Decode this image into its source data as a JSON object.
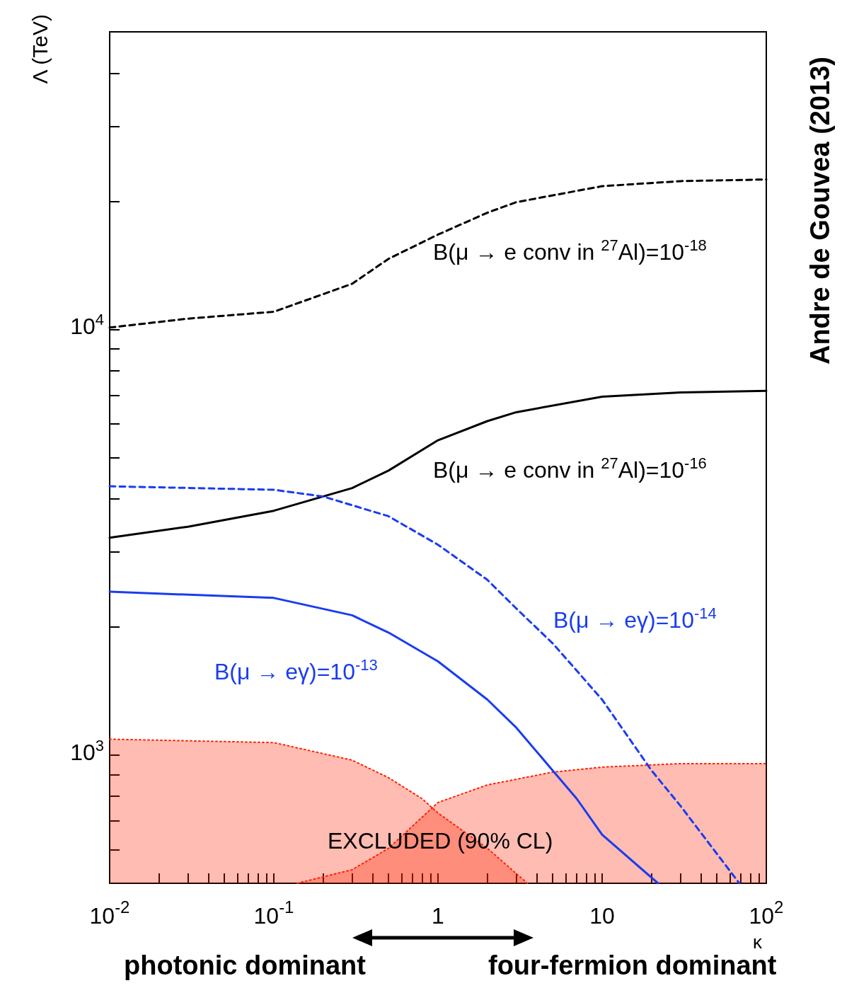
{
  "chart_data": {
    "type": "line",
    "xlabel": "κ",
    "ylabel": "Λ (TeV)",
    "log": "xy",
    "xlim": [
      0.01,
      100
    ],
    "ylim": [
      500,
      50000
    ],
    "xticks": [
      {
        "value": 0.01,
        "label": "10$^{-2}$"
      },
      {
        "value": 0.02,
        "label": null
      },
      {
        "value": 0.03,
        "label": null
      },
      {
        "value": 0.04,
        "label": null
      },
      {
        "value": 0.05,
        "label": null
      },
      {
        "value": 0.06,
        "label": null
      },
      {
        "value": 0.07,
        "label": null
      },
      {
        "value": 0.08,
        "label": null
      },
      {
        "value": 0.09,
        "label": null
      },
      {
        "value": 0.1,
        "label": "10$^{-1}$"
      },
      {
        "value": 0.2,
        "label": null
      },
      {
        "value": 0.3,
        "label": null
      },
      {
        "value": 0.4,
        "label": null
      },
      {
        "value": 0.5,
        "label": null
      },
      {
        "value": 0.6,
        "label": null
      },
      {
        "value": 0.7,
        "label": null
      },
      {
        "value": 0.8,
        "label": null
      },
      {
        "value": 0.9,
        "label": null
      },
      1,
      {
        "value": 2,
        "label": null
      },
      {
        "value": 3,
        "label": null
      },
      {
        "value": 4,
        "label": null
      },
      {
        "value": 5,
        "label": null
      },
      {
        "value": 6,
        "label": null
      },
      {
        "value": 7,
        "label": null
      },
      {
        "value": 8,
        "label": null
      },
      {
        "value": 9,
        "label": null
      },
      10,
      {
        "value": 20,
        "label": null
      },
      {
        "value": 30,
        "label": null
      },
      {
        "value": 40,
        "label": null
      },
      {
        "value": 50,
        "label": null
      },
      {
        "value": 60,
        "label": null
      },
      {
        "value": 70,
        "label": null
      },
      {
        "value": 80,
        "label": null
      },
      {
        "value": 90,
        "label": null
      },
      {
        "value": 100,
        "label": "10$^{2}$"
      }
    ],
    "yticks": [
      {
        "value": 600,
        "label": null
      },
      {
        "value": 700,
        "label": null
      },
      {
        "value": 800,
        "label": null
      },
      {
        "value": 900,
        "label": null
      },
      {
        "value": 1000,
        "label": "10$^{3}$"
      },
      {
        "value": 2000,
        "label": null
      },
      {
        "value": 3000,
        "label": null
      },
      {
        "value": 4000,
        "label": null
      },
      {
        "value": 5000,
        "label": null
      },
      {
        "value": 6000,
        "label": null
      },
      {
        "value": 7000,
        "label": null
      },
      {
        "value": 8000,
        "label": null
      },
      {
        "value": 9000,
        "label": null
      },
      {
        "value": 10000,
        "label": "10$^{4}$"
      },
      {
        "value": 20000,
        "label": null
      },
      {
        "value": 30000,
        "label": null
      },
      {
        "value": 40000,
        "label": null
      },
      {
        "value": 50000,
        "label": null
      }
    ],
    "grid": false,
    "marker": "none",
    "series": [
      {
        "type": "area",
        "color": "#ff2200",
        "line_style": "dotted",
        "x": [
          0.01,
          0.1,
          0.3,
          0.5,
          0.8,
          1,
          2,
          3.5
        ],
        "values": [
          1090,
          1070,
          973,
          885,
          790,
          731,
          604,
          500
        ]
      },
      {
        "type": "area",
        "color": "#ff2200",
        "line_style": "dotted",
        "x": [
          0.139,
          0.3,
          0.5,
          1,
          2,
          5,
          10,
          30,
          100
        ],
        "values": [
          500,
          538,
          604,
          774,
          851,
          912,
          937,
          955,
          955
        ]
      },
      {
        "name": "B(μ → e conv in $^{27}$Al)=10$^{-18}$",
        "color": "#000000",
        "line_style": "dashed",
        "x": [
          0.01,
          0.03,
          0.1,
          0.3,
          0.5,
          1,
          2,
          3,
          10,
          30,
          100
        ],
        "values": [
          10100,
          10600,
          11000,
          12800,
          14650,
          16700,
          18800,
          19900,
          21700,
          22300,
          22500
        ]
      },
      {
        "name": "B(μ → e conv in $^{27}$Al)=10$^{-16}$",
        "color": "#000000",
        "line_style": "solid",
        "x": [
          0.01,
          0.03,
          0.1,
          0.3,
          0.5,
          1,
          2,
          3,
          10,
          30,
          100
        ],
        "values": [
          3240,
          3440,
          3750,
          4240,
          4660,
          5490,
          6090,
          6390,
          6950,
          7110,
          7170
        ]
      },
      {
        "name": "B(μ → eγ)=10$^{-14}$",
        "color": "#1a3cf0",
        "line_style": "dashed",
        "x": [
          0.01,
          0.1,
          0.2,
          0.5,
          1,
          2,
          3,
          5,
          10,
          20,
          30,
          68.5
        ],
        "values": [
          4280,
          4200,
          4050,
          3640,
          3120,
          2580,
          2210,
          1830,
          1350,
          920,
          760,
          500
        ]
      },
      {
        "name": "B(μ → eγ)=10$^{-13}$",
        "color": "#1a3cf0",
        "line_style": "solid",
        "x": [
          0.01,
          0.1,
          0.3,
          0.5,
          1,
          2,
          3,
          5,
          7,
          10,
          21.9
        ],
        "values": [
          2420,
          2340,
          2130,
          1940,
          1660,
          1350,
          1160,
          920,
          790,
          650,
          500
        ]
      }
    ],
    "annotations": [
      "EXCLUDED (90% CL)",
      "Andre de Gouvea (2013)",
      "photonic dominant",
      "four-fermion dominant"
    ]
  }
}
